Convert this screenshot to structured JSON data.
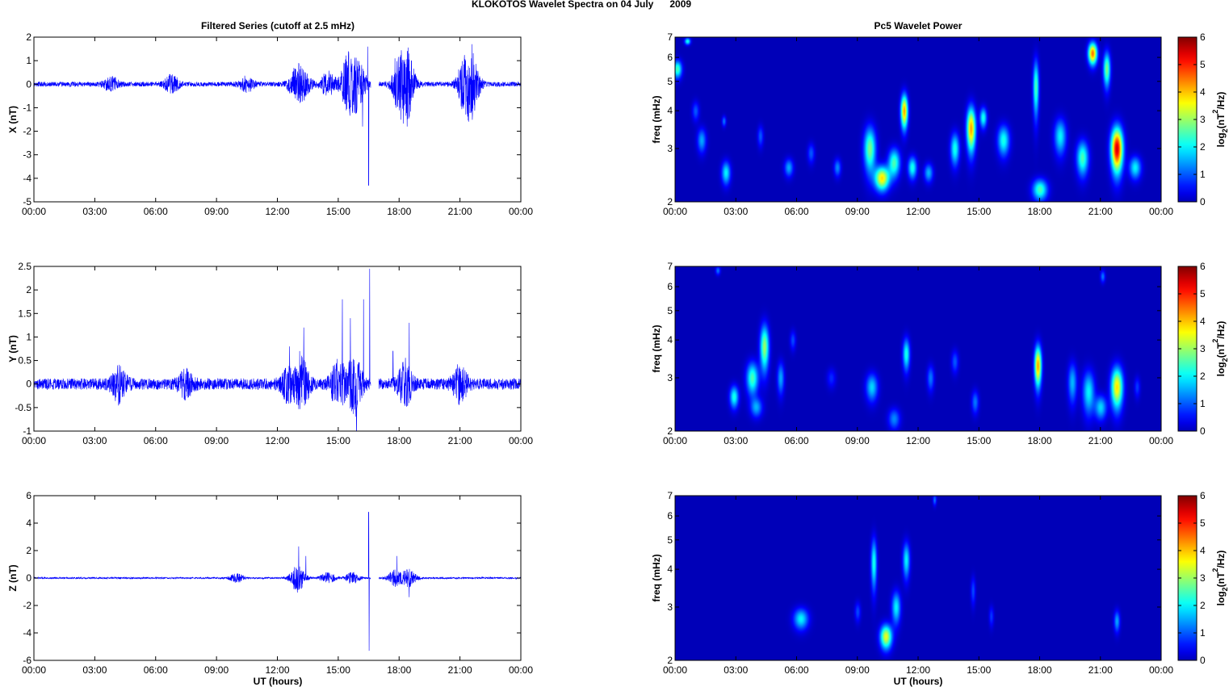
{
  "figure": {
    "suptitle": "KLOKOTOS Wavelet Spectra on 04 July      2009",
    "left_title": "Filtered Series (cutoff at 2.5 mHz)",
    "right_title": "Pc5 Wavelet Power",
    "xlabel": "UT (hours)",
    "spec_ylabel": "freq (mHz)",
    "cbar_label_prefix": "log",
    "cbar_label_sub": "2",
    "cbar_label_mid": "(nT",
    "cbar_label_sup": "2",
    "cbar_label_suffix": "/Hz)"
  },
  "colors": {
    "series_line": "#0000ff",
    "axes": "#000000",
    "spectrogram_background": "#00008f",
    "colormap": "jet"
  },
  "chart_data": [
    {
      "type": "line",
      "panel": "X",
      "ylabel": "X (nT)",
      "xlim_hours": [
        0,
        24
      ],
      "ylim": [
        -5,
        2
      ],
      "x_ticks": [
        "00:00",
        "03:00",
        "06:00",
        "09:00",
        "12:00",
        "15:00",
        "18:00",
        "21:00",
        "00:00"
      ],
      "y_ticks": [
        "2",
        "1",
        "0",
        "-1",
        "-2",
        "-3",
        "-4",
        "-5"
      ],
      "baseline_amplitude": 0.1,
      "data_gaps_hours": [
        [
          16.6,
          17.0
        ]
      ],
      "bursts": [
        {
          "t": 3.8,
          "amp": 0.3
        },
        {
          "t": 6.8,
          "amp": 0.35
        },
        {
          "t": 10.5,
          "amp": 0.3
        },
        {
          "t": 12.9,
          "amp": 0.6
        },
        {
          "t": 13.3,
          "amp": 0.5
        },
        {
          "t": 14.5,
          "amp": 0.5
        },
        {
          "t": 15.5,
          "amp": 1.2
        },
        {
          "t": 16.0,
          "amp": 0.9
        },
        {
          "t": 18.0,
          "amp": 1.0
        },
        {
          "t": 18.4,
          "amp": 1.3
        },
        {
          "t": 21.2,
          "amp": 0.9
        },
        {
          "t": 21.6,
          "amp": 1.2
        }
      ],
      "spikes": [
        {
          "t": 15.5,
          "y": 1.2
        },
        {
          "t": 16.2,
          "y": -1.8
        },
        {
          "t": 16.45,
          "y": 1.6
        },
        {
          "t": 16.5,
          "y": -4.3
        },
        {
          "t": 17.8,
          "y": 1.1
        },
        {
          "t": 18.4,
          "y": -1.8
        },
        {
          "t": 21.6,
          "y": 1.7
        },
        {
          "t": 21.55,
          "y": -1.2
        }
      ]
    },
    {
      "type": "line",
      "panel": "Y",
      "ylabel": "Y (nT)",
      "xlim_hours": [
        0,
        24
      ],
      "ylim": [
        -1,
        2.5
      ],
      "x_ticks": [
        "00:00",
        "03:00",
        "06:00",
        "09:00",
        "12:00",
        "15:00",
        "18:00",
        "21:00",
        "00:00"
      ],
      "y_ticks": [
        "2.5",
        "2",
        "1.5",
        "1",
        "0.5",
        "0",
        "-0.5",
        "-1"
      ],
      "baseline_amplitude": 0.12,
      "data_gaps_hours": [
        [
          16.6,
          17.0
        ]
      ],
      "bursts": [
        {
          "t": 4.2,
          "amp": 0.35
        },
        {
          "t": 7.5,
          "amp": 0.25
        },
        {
          "t": 12.5,
          "amp": 0.3
        },
        {
          "t": 13.2,
          "amp": 0.5
        },
        {
          "t": 15.0,
          "amp": 0.5
        },
        {
          "t": 15.8,
          "amp": 0.6
        },
        {
          "t": 18.3,
          "amp": 0.45
        },
        {
          "t": 21.0,
          "amp": 0.35
        }
      ],
      "spikes": [
        {
          "t": 12.6,
          "y": 0.8
        },
        {
          "t": 13.1,
          "y": 0.7
        },
        {
          "t": 13.3,
          "y": 1.2
        },
        {
          "t": 15.2,
          "y": 1.8
        },
        {
          "t": 15.6,
          "y": 1.4
        },
        {
          "t": 15.9,
          "y": -1.0
        },
        {
          "t": 16.25,
          "y": 1.8
        },
        {
          "t": 16.55,
          "y": 2.45
        },
        {
          "t": 17.7,
          "y": 0.7
        },
        {
          "t": 18.5,
          "y": 1.3
        }
      ]
    },
    {
      "type": "line",
      "panel": "Z",
      "ylabel": "Z (nT)",
      "xlim_hours": [
        0,
        24
      ],
      "ylim": [
        -6,
        6
      ],
      "x_ticks": [
        "00:00",
        "03:00",
        "06:00",
        "09:00",
        "12:00",
        "15:00",
        "18:00",
        "21:00",
        "00:00"
      ],
      "y_ticks": [
        "6",
        "4",
        "2",
        "0",
        "-2",
        "-4",
        "-6"
      ],
      "baseline_amplitude": 0.06,
      "data_gaps_hours": [
        [
          16.6,
          17.0
        ]
      ],
      "bursts": [
        {
          "t": 10.0,
          "amp": 0.3
        },
        {
          "t": 13.0,
          "amp": 1.0
        },
        {
          "t": 14.5,
          "amp": 0.4
        },
        {
          "t": 15.7,
          "amp": 0.4
        },
        {
          "t": 17.8,
          "amp": 0.6
        },
        {
          "t": 18.5,
          "amp": 0.6
        }
      ],
      "spikes": [
        {
          "t": 13.05,
          "y": 2.3
        },
        {
          "t": 13.4,
          "y": 1.6
        },
        {
          "t": 16.5,
          "y": 4.8
        },
        {
          "t": 16.52,
          "y": -5.3
        },
        {
          "t": 17.9,
          "y": 1.6
        },
        {
          "t": 18.5,
          "y": -1.4
        }
      ]
    },
    {
      "type": "heatmap",
      "panel": "X",
      "ylabel": "freq (mHz)",
      "xlim_hours": [
        0,
        24
      ],
      "ylim_mhz": [
        2,
        7
      ],
      "y_scale": "log",
      "x_ticks": [
        "00:00",
        "03:00",
        "06:00",
        "09:00",
        "12:00",
        "15:00",
        "18:00",
        "21:00",
        "00:00"
      ],
      "y_ticks": [
        "7",
        "6",
        "5",
        "4",
        "3",
        "2"
      ],
      "colorbar_range": [
        0,
        6
      ],
      "colorbar_ticks": [
        "6",
        "5",
        "4",
        "3",
        "2",
        "1",
        "0"
      ],
      "blobs": [
        {
          "t": 0.1,
          "f": 5.5,
          "p": 2.5,
          "st": 0.15,
          "sf": 0.25
        },
        {
          "t": 0.6,
          "f": 6.8,
          "p": 2.2,
          "st": 0.1,
          "sf": 0.12
        },
        {
          "t": 1.0,
          "f": 4.0,
          "p": 1.0,
          "st": 0.12,
          "sf": 0.2
        },
        {
          "t": 1.3,
          "f": 3.2,
          "p": 1.5,
          "st": 0.15,
          "sf": 0.2
        },
        {
          "t": 2.5,
          "f": 2.5,
          "p": 2.0,
          "st": 0.15,
          "sf": 0.15
        },
        {
          "t": 2.4,
          "f": 3.7,
          "p": 1.2,
          "st": 0.07,
          "sf": 0.1
        },
        {
          "t": 4.2,
          "f": 3.3,
          "p": 1.0,
          "st": 0.1,
          "sf": 0.18
        },
        {
          "t": 5.6,
          "f": 2.6,
          "p": 1.5,
          "st": 0.15,
          "sf": 0.12
        },
        {
          "t": 6.7,
          "f": 2.9,
          "p": 1.0,
          "st": 0.12,
          "sf": 0.15
        },
        {
          "t": 8.0,
          "f": 2.6,
          "p": 1.3,
          "st": 0.12,
          "sf": 0.12
        },
        {
          "t": 9.6,
          "f": 3.0,
          "p": 2.8,
          "st": 0.2,
          "sf": 0.35
        },
        {
          "t": 10.2,
          "f": 2.4,
          "p": 3.8,
          "st": 0.25,
          "sf": 0.15
        },
        {
          "t": 10.8,
          "f": 2.7,
          "p": 2.5,
          "st": 0.2,
          "sf": 0.2
        },
        {
          "t": 11.3,
          "f": 4.0,
          "p": 4.2,
          "st": 0.12,
          "sf": 0.35
        },
        {
          "t": 11.7,
          "f": 2.6,
          "p": 2.2,
          "st": 0.15,
          "sf": 0.15
        },
        {
          "t": 12.5,
          "f": 2.5,
          "p": 1.6,
          "st": 0.15,
          "sf": 0.12
        },
        {
          "t": 13.8,
          "f": 3.0,
          "p": 2.2,
          "st": 0.15,
          "sf": 0.25
        },
        {
          "t": 14.6,
          "f": 3.5,
          "p": 4.2,
          "st": 0.15,
          "sf": 0.4
        },
        {
          "t": 15.2,
          "f": 3.8,
          "p": 2.2,
          "st": 0.12,
          "sf": 0.2
        },
        {
          "t": 16.2,
          "f": 3.2,
          "p": 2.2,
          "st": 0.2,
          "sf": 0.25
        },
        {
          "t": 17.8,
          "f": 4.8,
          "p": 2.5,
          "st": 0.1,
          "sf": 0.7
        },
        {
          "t": 18.0,
          "f": 2.2,
          "p": 2.5,
          "st": 0.25,
          "sf": 0.12
        },
        {
          "t": 19.0,
          "f": 3.3,
          "p": 2.0,
          "st": 0.2,
          "sf": 0.3
        },
        {
          "t": 20.1,
          "f": 2.8,
          "p": 2.5,
          "st": 0.2,
          "sf": 0.25
        },
        {
          "t": 20.6,
          "f": 6.2,
          "p": 4.5,
          "st": 0.15,
          "sf": 0.35
        },
        {
          "t": 21.3,
          "f": 5.5,
          "p": 2.8,
          "st": 0.12,
          "sf": 0.5
        },
        {
          "t": 21.8,
          "f": 3.0,
          "p": 5.5,
          "st": 0.2,
          "sf": 0.35
        },
        {
          "t": 22.7,
          "f": 2.6,
          "p": 2.0,
          "st": 0.2,
          "sf": 0.15
        }
      ]
    },
    {
      "type": "heatmap",
      "panel": "Y",
      "ylabel": "freq (mHz)",
      "xlim_hours": [
        0,
        24
      ],
      "ylim_mhz": [
        2,
        7
      ],
      "y_scale": "log",
      "x_ticks": [
        "00:00",
        "03:00",
        "06:00",
        "09:00",
        "12:00",
        "15:00",
        "18:00",
        "21:00",
        "00:00"
      ],
      "y_ticks": [
        "7",
        "6",
        "5",
        "4",
        "3",
        "2"
      ],
      "colorbar_range": [
        0,
        6
      ],
      "colorbar_ticks": [
        "6",
        "5",
        "4",
        "3",
        "2",
        "1",
        "0"
      ],
      "blobs": [
        {
          "t": 2.1,
          "f": 6.8,
          "p": 1.2,
          "st": 0.08,
          "sf": 0.15
        },
        {
          "t": 2.9,
          "f": 2.6,
          "p": 2.2,
          "st": 0.15,
          "sf": 0.15
        },
        {
          "t": 3.8,
          "f": 3.0,
          "p": 2.5,
          "st": 0.2,
          "sf": 0.25
        },
        {
          "t": 4.4,
          "f": 3.8,
          "p": 3.0,
          "st": 0.15,
          "sf": 0.45
        },
        {
          "t": 4.0,
          "f": 2.4,
          "p": 1.5,
          "st": 0.2,
          "sf": 0.12
        },
        {
          "t": 5.2,
          "f": 3.0,
          "p": 1.5,
          "st": 0.12,
          "sf": 0.25
        },
        {
          "t": 5.8,
          "f": 4.0,
          "p": 0.9,
          "st": 0.1,
          "sf": 0.2
        },
        {
          "t": 7.7,
          "f": 3.0,
          "p": 0.7,
          "st": 0.15,
          "sf": 0.15
        },
        {
          "t": 9.7,
          "f": 2.8,
          "p": 1.8,
          "st": 0.2,
          "sf": 0.2
        },
        {
          "t": 10.8,
          "f": 2.2,
          "p": 1.3,
          "st": 0.2,
          "sf": 0.12
        },
        {
          "t": 11.4,
          "f": 3.6,
          "p": 2.2,
          "st": 0.12,
          "sf": 0.3
        },
        {
          "t": 12.6,
          "f": 3.0,
          "p": 1.2,
          "st": 0.12,
          "sf": 0.2
        },
        {
          "t": 13.8,
          "f": 3.4,
          "p": 1.0,
          "st": 0.12,
          "sf": 0.2
        },
        {
          "t": 14.8,
          "f": 2.5,
          "p": 1.2,
          "st": 0.12,
          "sf": 0.15
        },
        {
          "t": 17.9,
          "f": 3.3,
          "p": 4.2,
          "st": 0.12,
          "sf": 0.35
        },
        {
          "t": 19.6,
          "f": 2.9,
          "p": 1.6,
          "st": 0.15,
          "sf": 0.3
        },
        {
          "t": 20.4,
          "f": 2.7,
          "p": 2.0,
          "st": 0.2,
          "sf": 0.3
        },
        {
          "t": 21.0,
          "f": 2.4,
          "p": 1.8,
          "st": 0.2,
          "sf": 0.15
        },
        {
          "t": 21.8,
          "f": 2.8,
          "p": 3.8,
          "st": 0.2,
          "sf": 0.3
        },
        {
          "t": 21.1,
          "f": 6.5,
          "p": 1.2,
          "st": 0.08,
          "sf": 0.2
        },
        {
          "t": 22.8,
          "f": 2.8,
          "p": 0.8,
          "st": 0.1,
          "sf": 0.15
        }
      ]
    },
    {
      "type": "heatmap",
      "panel": "Z",
      "ylabel": "freq (mHz)",
      "xlim_hours": [
        0,
        24
      ],
      "ylim_mhz": [
        2,
        7
      ],
      "y_scale": "log",
      "x_ticks": [
        "00:00",
        "03:00",
        "06:00",
        "09:00",
        "12:00",
        "15:00",
        "18:00",
        "21:00",
        "00:00"
      ],
      "y_ticks": [
        "7",
        "6",
        "5",
        "4",
        "3",
        "2"
      ],
      "colorbar_range": [
        0,
        6
      ],
      "colorbar_ticks": [
        "6",
        "5",
        "4",
        "3",
        "2",
        "1",
        "0"
      ],
      "blobs": [
        {
          "t": 6.2,
          "f": 2.75,
          "p": 2.0,
          "st": 0.25,
          "sf": 0.15
        },
        {
          "t": 9.0,
          "f": 2.9,
          "p": 0.9,
          "st": 0.1,
          "sf": 0.15
        },
        {
          "t": 9.8,
          "f": 4.2,
          "p": 2.2,
          "st": 0.1,
          "sf": 0.55
        },
        {
          "t": 10.4,
          "f": 2.4,
          "p": 3.5,
          "st": 0.2,
          "sf": 0.15
        },
        {
          "t": 10.9,
          "f": 3.0,
          "p": 2.0,
          "st": 0.15,
          "sf": 0.25
        },
        {
          "t": 11.4,
          "f": 4.3,
          "p": 2.0,
          "st": 0.12,
          "sf": 0.4
        },
        {
          "t": 12.8,
          "f": 6.8,
          "p": 1.2,
          "st": 0.06,
          "sf": 0.2
        },
        {
          "t": 14.7,
          "f": 3.4,
          "p": 0.9,
          "st": 0.08,
          "sf": 0.25
        },
        {
          "t": 15.6,
          "f": 2.8,
          "p": 0.8,
          "st": 0.08,
          "sf": 0.15
        },
        {
          "t": 21.8,
          "f": 2.7,
          "p": 1.5,
          "st": 0.1,
          "sf": 0.15
        }
      ]
    }
  ]
}
